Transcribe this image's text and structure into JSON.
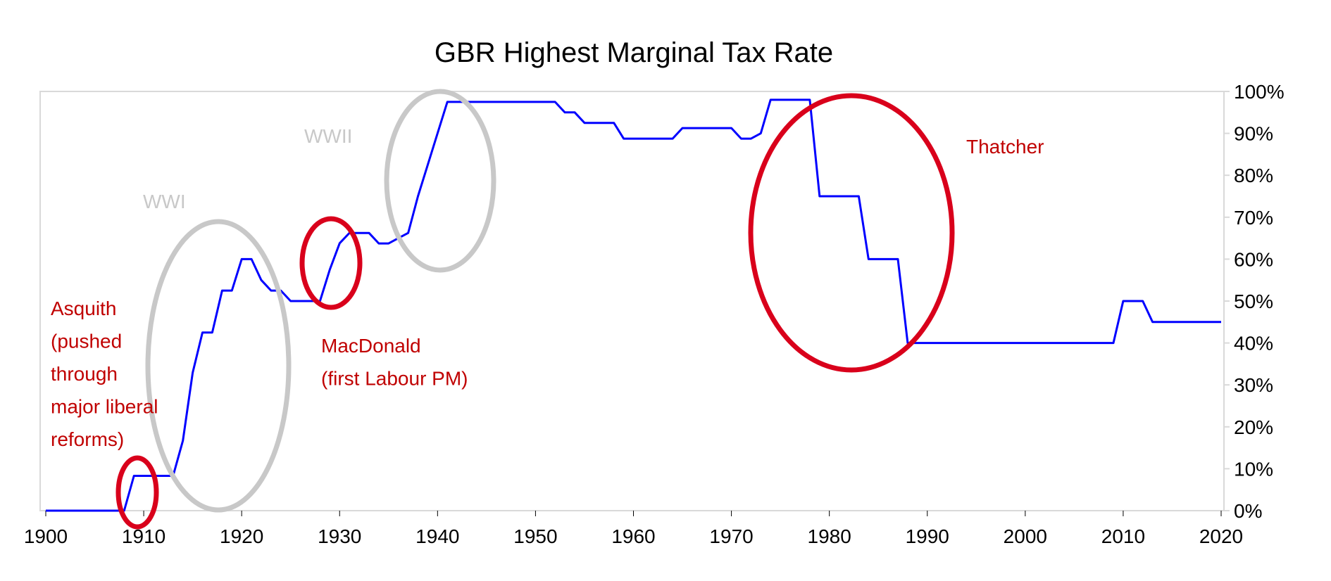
{
  "chart_data": {
    "type": "line",
    "title": "GBR Highest Marginal Tax Rate",
    "xlabel": "",
    "ylabel": "",
    "xlim": [
      1900,
      2021
    ],
    "ylim": [
      0,
      100
    ],
    "x_ticks": [
      "1900",
      "1910",
      "1920",
      "1930",
      "1940",
      "1950",
      "1960",
      "1970",
      "1980",
      "1990",
      "2000",
      "2010",
      "2020"
    ],
    "y_ticks": [
      "0%",
      "10%",
      "20%",
      "30%",
      "40%",
      "50%",
      "60%",
      "70%",
      "80%",
      "90%",
      "100%"
    ],
    "y_axis_side": "right",
    "grid": false,
    "legend": "none",
    "line_color": "#0000ff",
    "series": [
      {
        "x": [
          1900,
          1908,
          1909,
          1913,
          1914,
          1915,
          1916,
          1917,
          1918,
          1919,
          1920,
          1921,
          1922,
          1923,
          1924,
          1925,
          1926,
          1927,
          1928,
          1929,
          1930,
          1931,
          1932,
          1933,
          1934,
          1935,
          1936,
          1937,
          1938,
          1939,
          1940,
          1941,
          1942,
          1943,
          1944,
          1945,
          1946,
          1947,
          1948,
          1949,
          1950,
          1951,
          1952,
          1953,
          1954,
          1955,
          1956,
          1957,
          1958,
          1959,
          1960,
          1961,
          1962,
          1963,
          1964,
          1965,
          1966,
          1967,
          1968,
          1969,
          1970,
          1971,
          1972,
          1973,
          1974,
          1975,
          1976,
          1977,
          1978,
          1979,
          1980,
          1981,
          1982,
          1983,
          1984,
          1985,
          1986,
          1987,
          1988,
          1990,
          2000,
          2009,
          2010,
          2011,
          2012,
          2013,
          2014,
          2020
        ],
        "y": [
          0,
          0,
          8.3,
          8.3,
          16.7,
          32.9,
          42.5,
          42.5,
          52.5,
          52.5,
          60,
          60,
          55,
          52.5,
          52.5,
          50,
          50,
          50,
          50,
          57.5,
          63.8,
          66.25,
          66.25,
          66.25,
          63.75,
          63.75,
          65,
          66.25,
          75,
          82.5,
          90,
          97.5,
          97.5,
          97.5,
          97.5,
          97.5,
          97.5,
          97.5,
          97.5,
          97.5,
          97.5,
          97.5,
          97.5,
          95,
          95,
          92.5,
          92.5,
          92.5,
          92.5,
          88.75,
          88.75,
          88.75,
          88.75,
          88.75,
          88.75,
          91.25,
          91.25,
          91.25,
          91.25,
          91.25,
          91.25,
          88.75,
          88.75,
          90,
          98,
          98,
          98,
          98,
          98,
          75,
          75,
          75,
          75,
          75,
          60,
          60,
          60,
          60,
          40,
          40,
          40,
          40,
          50,
          50,
          50,
          45,
          45,
          45
        ]
      }
    ],
    "annotations": [
      {
        "text_lines": [
          "WWI"
        ],
        "color": "#c8c8c8"
      },
      {
        "text_lines": [
          "WWII"
        ],
        "color": "#c8c8c8"
      },
      {
        "text_lines": [
          "Asquith",
          "(pushed",
          "through",
          "major liberal",
          "reforms)"
        ],
        "color": "#c00000"
      },
      {
        "text_lines": [
          "MacDonald",
          "(first Labour PM)"
        ],
        "color": "#c00000"
      },
      {
        "text_lines": [
          "Thatcher"
        ],
        "color": "#c00000"
      }
    ],
    "highlight_colors": {
      "gray": "#c8c8c8",
      "red": "#d9001b"
    }
  }
}
